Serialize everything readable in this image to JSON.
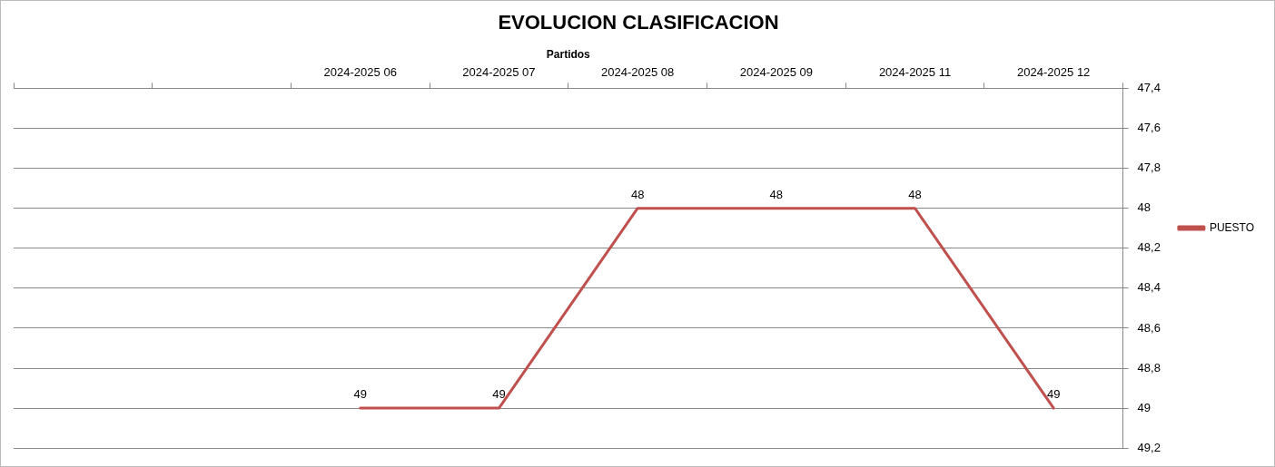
{
  "chart_data": {
    "type": "line",
    "title": "EVOLUCION CLASIFICACION",
    "xlabel": "Partidos",
    "categories": [
      null,
      null,
      "2024-2025 06",
      "2024-2025 07",
      "2024-2025 08",
      "2024-2025 09",
      "2024-2025 11",
      "2024-2025 12"
    ],
    "series": [
      {
        "name": "PUESTO",
        "color": "#c0504d",
        "values": [
          null,
          null,
          49,
          49,
          48,
          48,
          48,
          49
        ]
      }
    ],
    "ylim": [
      49.2,
      47.4
    ],
    "yticks": [
      {
        "value": 47.4,
        "label": "47,4"
      },
      {
        "value": 47.6,
        "label": "47,6"
      },
      {
        "value": 47.8,
        "label": "47,8"
      },
      48,
      {
        "value": 48.2,
        "label": "48,2"
      },
      {
        "value": 48.4,
        "label": "48,4"
      },
      {
        "value": 48.6,
        "label": "48,6"
      },
      {
        "value": 48.8,
        "label": "48,8"
      },
      49,
      {
        "value": 49.2,
        "label": "49,2"
      }
    ],
    "grid": "y",
    "legend": "right",
    "marker": "none",
    "line_style": "solid",
    "data_labels": true
  }
}
